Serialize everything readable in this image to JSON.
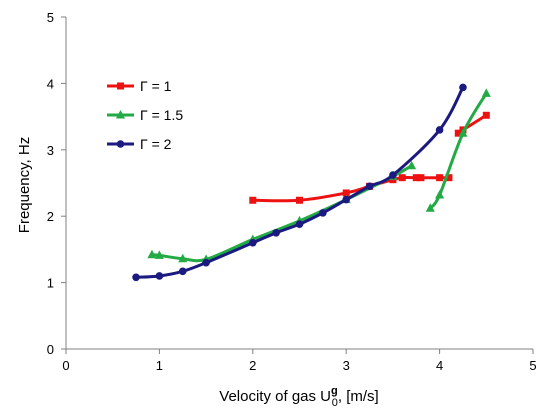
{
  "chart_data": {
    "type": "line",
    "title": "",
    "xlabel": {
      "text": "Velocity of gas U",
      "superscript": "g",
      "subscript": "0",
      "unit": ", [m/s]"
    },
    "ylabel": "Frequency, Hz",
    "xlim": [
      0,
      5
    ],
    "ylim": [
      0,
      5
    ],
    "xticks": [
      0,
      1,
      2,
      3,
      4,
      5
    ],
    "yticks": [
      0,
      1,
      2,
      3,
      4,
      5
    ],
    "grid": false,
    "legend_position": "top-left",
    "series": [
      {
        "name": "Γ = 1",
        "color": "#ee1111",
        "marker": "square",
        "segments": [
          [
            [
              2.0,
              2.24
            ],
            [
              2.5,
              2.24
            ],
            [
              3.0,
              2.35
            ],
            [
              3.25,
              2.45
            ],
            [
              3.5,
              2.55
            ],
            [
              3.6,
              2.58
            ],
            [
              3.75,
              2.58
            ],
            [
              3.8,
              2.58
            ],
            [
              4.0,
              2.58
            ],
            [
              4.1,
              2.58
            ]
          ],
          [
            [
              4.2,
              3.25
            ],
            [
              4.25,
              3.3
            ],
            [
              4.5,
              3.52
            ]
          ]
        ]
      },
      {
        "name": "Γ = 1.5",
        "color": "#22aa44",
        "marker": "triangle",
        "segments": [
          [
            [
              0.92,
              1.42
            ],
            [
              1.0,
              1.41
            ],
            [
              1.25,
              1.36
            ],
            [
              1.5,
              1.35
            ],
            [
              2.0,
              1.65
            ],
            [
              2.5,
              1.93
            ],
            [
              3.0,
              2.25
            ],
            [
              3.5,
              2.6
            ],
            [
              3.7,
              2.76
            ]
          ],
          [
            [
              3.9,
              2.12
            ],
            [
              4.0,
              2.32
            ],
            [
              4.25,
              3.25
            ],
            [
              4.5,
              3.85
            ]
          ]
        ]
      },
      {
        "name": "Γ = 2",
        "color": "#1a1a80",
        "marker": "circle",
        "segments": [
          [
            [
              0.75,
              1.08
            ],
            [
              1.0,
              1.1
            ],
            [
              1.25,
              1.17
            ],
            [
              1.5,
              1.3
            ],
            [
              2.0,
              1.6
            ],
            [
              2.25,
              1.75
            ],
            [
              2.5,
              1.88
            ],
            [
              2.75,
              2.05
            ],
            [
              3.0,
              2.25
            ],
            [
              3.25,
              2.45
            ],
            [
              3.5,
              2.62
            ],
            [
              4.0,
              3.3
            ],
            [
              4.25,
              3.94
            ]
          ]
        ]
      }
    ]
  }
}
